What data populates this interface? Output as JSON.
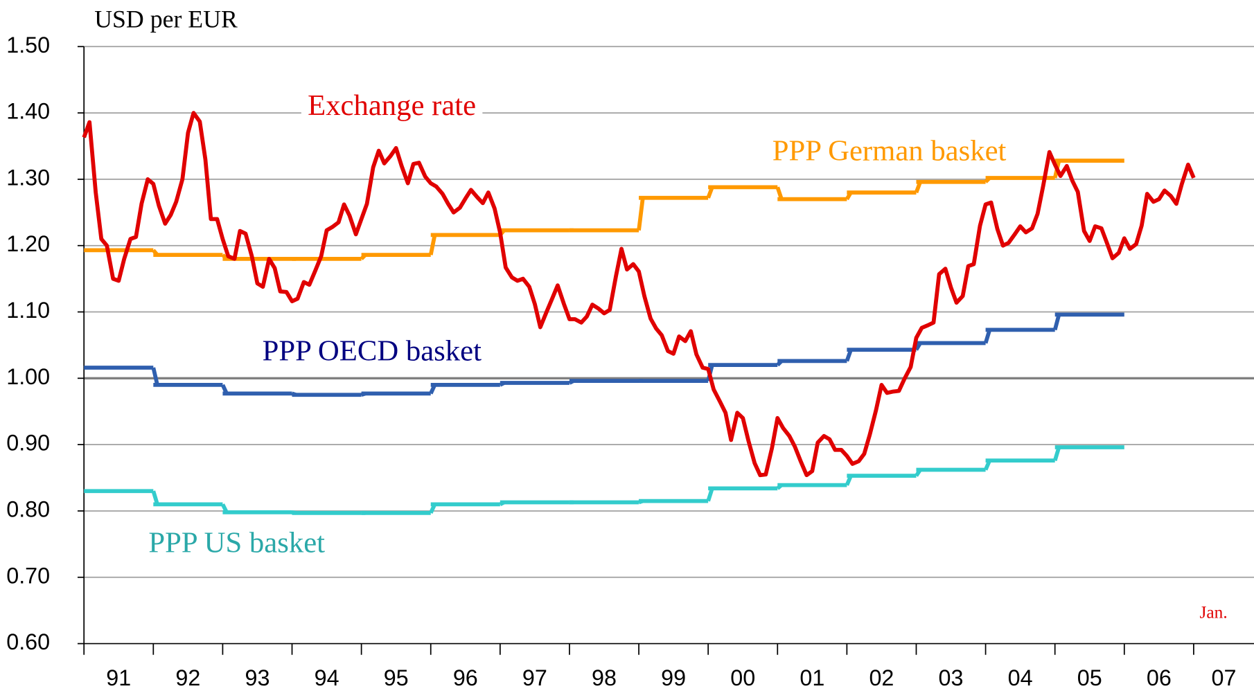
{
  "chart_data": {
    "type": "line",
    "y_label": "USD per EUR",
    "annotation": "Jan.",
    "xlim": [
      1991,
      2007.87
    ],
    "ylim": [
      0.6,
      1.5
    ],
    "grid": true,
    "xticks": [
      {
        "value": 1991,
        "label": "91"
      },
      {
        "value": 1992,
        "label": "92"
      },
      {
        "value": 1993,
        "label": "93"
      },
      {
        "value": 1994,
        "label": "94"
      },
      {
        "value": 1995,
        "label": "95"
      },
      {
        "value": 1996,
        "label": "96"
      },
      {
        "value": 1997,
        "label": "97"
      },
      {
        "value": 1998,
        "label": "98"
      },
      {
        "value": 1999,
        "label": "99"
      },
      {
        "value": 2000,
        "label": "00"
      },
      {
        "value": 2001,
        "label": "01"
      },
      {
        "value": 2002,
        "label": "02"
      },
      {
        "value": 2003,
        "label": "03"
      },
      {
        "value": 2004,
        "label": "04"
      },
      {
        "value": 2005,
        "label": "05"
      },
      {
        "value": 2006,
        "label": "06"
      },
      {
        "value": 2007,
        "label": "07"
      }
    ],
    "yticks": [
      {
        "value": 0.6,
        "label": "0.60"
      },
      {
        "value": 0.7,
        "label": "0.70"
      },
      {
        "value": 0.8,
        "label": "0.80"
      },
      {
        "value": 0.9,
        "label": "0.90"
      },
      {
        "value": 1.0,
        "label": "1.00"
      },
      {
        "value": 1.1,
        "label": "1.10"
      },
      {
        "value": 1.2,
        "label": "1.20"
      },
      {
        "value": 1.3,
        "label": "1.30"
      },
      {
        "value": 1.4,
        "label": "1.40"
      },
      {
        "value": 1.5,
        "label": "1.50"
      }
    ],
    "series": [
      {
        "name": "Exchange rate",
        "color": "#e00000",
        "label_color": "#e00000",
        "step": false,
        "x": [
          1991.0,
          1991.08,
          1991.17,
          1991.25,
          1991.33,
          1991.42,
          1991.5,
          1991.58,
          1991.67,
          1991.75,
          1991.83,
          1991.92,
          1992.0,
          1992.08,
          1992.17,
          1992.25,
          1992.33,
          1992.42,
          1992.5,
          1992.58,
          1992.67,
          1992.75,
          1992.83,
          1992.92,
          1993.0,
          1993.08,
          1993.17,
          1993.25,
          1993.33,
          1993.42,
          1993.5,
          1993.58,
          1993.67,
          1993.75,
          1993.83,
          1993.92,
          1994.0,
          1994.08,
          1994.17,
          1994.25,
          1994.33,
          1994.42,
          1994.5,
          1994.58,
          1994.67,
          1994.75,
          1994.83,
          1994.92,
          1995.0,
          1995.08,
          1995.17,
          1995.25,
          1995.33,
          1995.42,
          1995.5,
          1995.58,
          1995.67,
          1995.75,
          1995.83,
          1995.92,
          1996.0,
          1996.08,
          1996.17,
          1996.25,
          1996.33,
          1996.42,
          1996.5,
          1996.58,
          1996.67,
          1996.75,
          1996.83,
          1996.92,
          1997.0,
          1997.08,
          1997.17,
          1997.25,
          1997.33,
          1997.42,
          1997.5,
          1997.58,
          1997.67,
          1997.75,
          1997.83,
          1997.92,
          1998.0,
          1998.08,
          1998.17,
          1998.25,
          1998.33,
          1998.42,
          1998.5,
          1998.58,
          1998.67,
          1998.75,
          1998.83,
          1998.92,
          1999.0,
          1999.08,
          1999.17,
          1999.25,
          1999.33,
          1999.42,
          1999.5,
          1999.58,
          1999.67,
          1999.75,
          1999.83,
          1999.92,
          2000.0,
          2000.08,
          2000.17,
          2000.25,
          2000.33,
          2000.42,
          2000.5,
          2000.58,
          2000.67,
          2000.75,
          2000.83,
          2000.92,
          2001.0,
          2001.08,
          2001.17,
          2001.25,
          2001.33,
          2001.42,
          2001.5,
          2001.58,
          2001.67,
          2001.75,
          2001.83,
          2001.92,
          2002.0,
          2002.08,
          2002.17,
          2002.25,
          2002.33,
          2002.42,
          2002.5,
          2002.58,
          2002.67,
          2002.75,
          2002.83,
          2002.92,
          2003.0,
          2003.08,
          2003.17,
          2003.25,
          2003.33,
          2003.42,
          2003.5,
          2003.58,
          2003.67,
          2003.75,
          2003.83,
          2003.92,
          2004.0,
          2004.08,
          2004.17,
          2004.25,
          2004.33,
          2004.42,
          2004.5,
          2004.58,
          2004.67,
          2004.75,
          2004.83,
          2004.92,
          2005.0,
          2005.08,
          2005.17,
          2005.25,
          2005.33,
          2005.42,
          2005.5,
          2005.58,
          2005.67,
          2005.75,
          2005.83,
          2005.92,
          2006.0,
          2006.08,
          2006.17,
          2006.25,
          2006.33,
          2006.42,
          2006.5,
          2006.58,
          2006.67,
          2006.75,
          2006.83,
          2006.92,
          2007.0
        ],
        "values": [
          1.363,
          1.386,
          1.28,
          1.21,
          1.2,
          1.15,
          1.147,
          1.18,
          1.21,
          1.213,
          1.263,
          1.3,
          1.293,
          1.26,
          1.233,
          1.246,
          1.266,
          1.3,
          1.37,
          1.4,
          1.387,
          1.33,
          1.24,
          1.24,
          1.21,
          1.184,
          1.18,
          1.222,
          1.218,
          1.184,
          1.143,
          1.138,
          1.18,
          1.166,
          1.131,
          1.13,
          1.116,
          1.12,
          1.145,
          1.141,
          1.161,
          1.184,
          1.223,
          1.228,
          1.235,
          1.262,
          1.245,
          1.217,
          1.24,
          1.263,
          1.318,
          1.343,
          1.324,
          1.335,
          1.347,
          1.32,
          1.294,
          1.323,
          1.325,
          1.304,
          1.294,
          1.289,
          1.278,
          1.263,
          1.25,
          1.257,
          1.271,
          1.284,
          1.273,
          1.264,
          1.28,
          1.256,
          1.22,
          1.167,
          1.152,
          1.147,
          1.15,
          1.138,
          1.112,
          1.077,
          1.1,
          1.12,
          1.14,
          1.112,
          1.089,
          1.089,
          1.084,
          1.093,
          1.111,
          1.105,
          1.098,
          1.103,
          1.154,
          1.195,
          1.164,
          1.172,
          1.161,
          1.124,
          1.09,
          1.075,
          1.065,
          1.041,
          1.037,
          1.063,
          1.056,
          1.071,
          1.036,
          1.016,
          1.014,
          0.983,
          0.965,
          0.948,
          0.907,
          0.948,
          0.94,
          0.906,
          0.872,
          0.854,
          0.855,
          0.895,
          0.94,
          0.925,
          0.913,
          0.897,
          0.876,
          0.854,
          0.86,
          0.903,
          0.913,
          0.908,
          0.892,
          0.892,
          0.883,
          0.871,
          0.875,
          0.886,
          0.915,
          0.952,
          0.99,
          0.978,
          0.98,
          0.981,
          0.999,
          1.017,
          1.061,
          1.076,
          1.08,
          1.084,
          1.157,
          1.165,
          1.137,
          1.114,
          1.124,
          1.169,
          1.172,
          1.23,
          1.262,
          1.265,
          1.225,
          1.2,
          1.204,
          1.217,
          1.229,
          1.22,
          1.226,
          1.248,
          1.29,
          1.341,
          1.322,
          1.305,
          1.32,
          1.298,
          1.281,
          1.222,
          1.207,
          1.229,
          1.226,
          1.204,
          1.181,
          1.189,
          1.211,
          1.195,
          1.202,
          1.23,
          1.278,
          1.266,
          1.27,
          1.283,
          1.275,
          1.263,
          1.293,
          1.322,
          1.302
        ]
      },
      {
        "name": "PPP German basket",
        "color": "#ff9900",
        "label_color": "#ff9900",
        "step": true,
        "x": [
          1991,
          1992,
          1993,
          1994,
          1995,
          1996,
          1997,
          1998,
          1999,
          2000,
          2001,
          2002,
          2003,
          2004,
          2005,
          2006
        ],
        "values": [
          1.193,
          1.186,
          1.18,
          1.18,
          1.186,
          1.216,
          1.223,
          1.223,
          1.272,
          1.288,
          1.27,
          1.28,
          1.296,
          1.302,
          1.328,
          1.328
        ]
      },
      {
        "name": "PPP OECD basket",
        "color": "#2f5fae",
        "label_color": "#000080",
        "step": true,
        "x": [
          1991,
          1992,
          1993,
          1994,
          1995,
          1996,
          1997,
          1998,
          1999,
          2000,
          2001,
          2002,
          2003,
          2004,
          2005,
          2006
        ],
        "values": [
          1.016,
          0.99,
          0.977,
          0.975,
          0.977,
          0.99,
          0.993,
          0.996,
          0.996,
          1.02,
          1.026,
          1.043,
          1.053,
          1.073,
          1.096,
          1.096
        ]
      },
      {
        "name": "PPP US basket",
        "color": "#33cccc",
        "label_color": "#2aa8a8",
        "step": true,
        "x": [
          1991,
          1992,
          1993,
          1994,
          1995,
          1996,
          1997,
          1998,
          1999,
          2000,
          2001,
          2002,
          2003,
          2004,
          2005,
          2006
        ],
        "values": [
          0.83,
          0.81,
          0.798,
          0.797,
          0.797,
          0.81,
          0.813,
          0.813,
          0.815,
          0.834,
          0.839,
          0.853,
          0.862,
          0.876,
          0.896,
          0.896
        ]
      }
    ]
  }
}
